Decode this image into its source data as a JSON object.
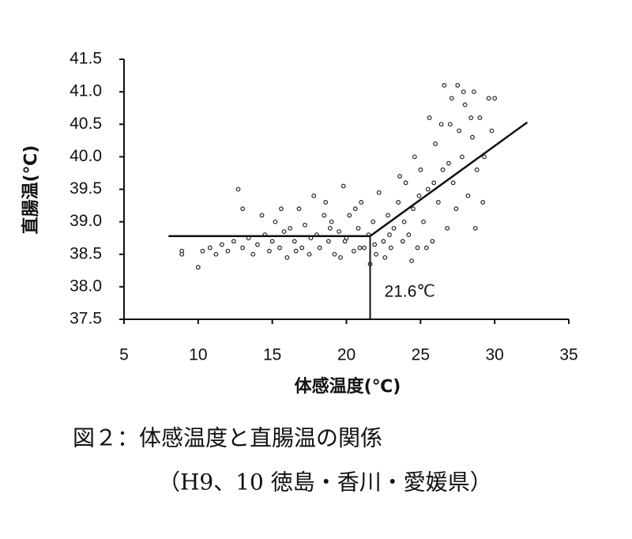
{
  "chart_data": {
    "type": "scatter",
    "x_label": "体感温度(℃)",
    "y_label": "直腸温(℃)",
    "xlim": [
      5,
      35
    ],
    "xticks": [
      5,
      10,
      15,
      20,
      25,
      30,
      35
    ],
    "ylim": [
      37.5,
      41.5
    ],
    "yticks": [
      37.5,
      {
        "value": 38,
        "label": "38.0"
      },
      38.5,
      {
        "value": 39,
        "label": "39.0"
      },
      39.5,
      {
        "value": 40,
        "label": "40.0"
      },
      40.5,
      {
        "value": 41,
        "label": "41.0"
      },
      41.5
    ],
    "color": "#222222",
    "x": [
      8.9,
      8.9,
      10,
      10.3,
      10.8,
      11.2,
      11.6,
      12,
      12.4,
      12.7,
      13,
      13,
      13.4,
      13.7,
      14,
      14.3,
      14.5,
      14.8,
      15,
      15.2,
      15.5,
      15.8,
      16,
      16.2,
      16.5,
      16.8,
      17,
      17.2,
      17.5,
      17.8,
      18,
      18.2,
      18.5,
      18.8,
      19,
      19.2,
      19.5,
      19.8,
      20,
      20.2,
      20.5,
      20.8,
      21,
      21.2,
      21.5,
      21.8,
      22,
      22.2,
      22.5,
      22.8,
      23,
      23.2,
      23.5,
      23.8,
      24,
      24.2,
      24.5,
      24.8,
      25,
      25.2,
      25.5,
      25.8,
      26,
      26.2,
      26.5,
      26.8,
      27,
      27.2,
      27.5,
      27.8,
      28,
      28.2,
      28.5,
      28.8,
      29,
      29.3,
      29.6,
      30,
      26.6,
      27.9,
      28.7,
      25.6,
      24.6,
      23.6,
      22.6,
      21.6,
      20.6,
      19.6,
      18.6,
      17.6,
      16.6,
      15.6,
      24.4,
      25.4,
      26.4,
      27.4,
      28.4,
      29.2,
      27.6,
      26.9,
      25.9,
      24.9,
      23.9,
      22.9,
      21.9,
      20.9,
      19.9,
      18.9,
      29.8,
      28.6,
      27.1
    ],
    "values": [
      38.55,
      38.5,
      38.3,
      38.55,
      38.6,
      38.5,
      38.65,
      38.55,
      38.7,
      39.5,
      39.2,
      38.6,
      38.75,
      38.5,
      38.65,
      39.1,
      38.8,
      38.55,
      38.7,
      39.0,
      38.6,
      38.85,
      38.45,
      38.9,
      38.7,
      39.2,
      38.6,
      38.95,
      38.5,
      39.4,
      38.8,
      38.6,
      39.1,
      38.7,
      39.0,
      38.5,
      38.85,
      39.55,
      38.75,
      39.1,
      38.55,
      38.9,
      39.3,
      38.6,
      38.8,
      39.0,
      38.5,
      39.45,
      38.7,
      39.1,
      38.6,
      38.9,
      39.3,
      38.7,
      39.6,
      38.8,
      39.2,
      38.6,
      39.8,
      39.0,
      39.5,
      38.7,
      40.2,
      39.3,
      39.8,
      38.9,
      40.5,
      39.6,
      41.1,
      40.0,
      40.8,
      39.4,
      40.3,
      39.8,
      40.6,
      40.0,
      40.9,
      40.9,
      41.1,
      41.0,
      38.9,
      40.6,
      40.0,
      39.7,
      38.45,
      38.35,
      39.2,
      38.45,
      39.3,
      38.75,
      38.55,
      39.2,
      38.4,
      38.6,
      40.5,
      39.2,
      40.6,
      39.3,
      40.4,
      39.9,
      39.6,
      39.4,
      39.0,
      38.8,
      38.65,
      38.6,
      38.7,
      38.9,
      40.4,
      41.0,
      40.9
    ],
    "fit_line": {
      "x": [
        8,
        21.6,
        32.2
      ],
      "values": [
        38.78,
        38.78,
        40.53
      ]
    },
    "threshold": {
      "x": 21.6,
      "label": "21.6℃"
    },
    "caption": [
      "図２：体感温度と直腸温の関係",
      "（H9、10 徳島・香川・愛媛県）"
    ]
  }
}
